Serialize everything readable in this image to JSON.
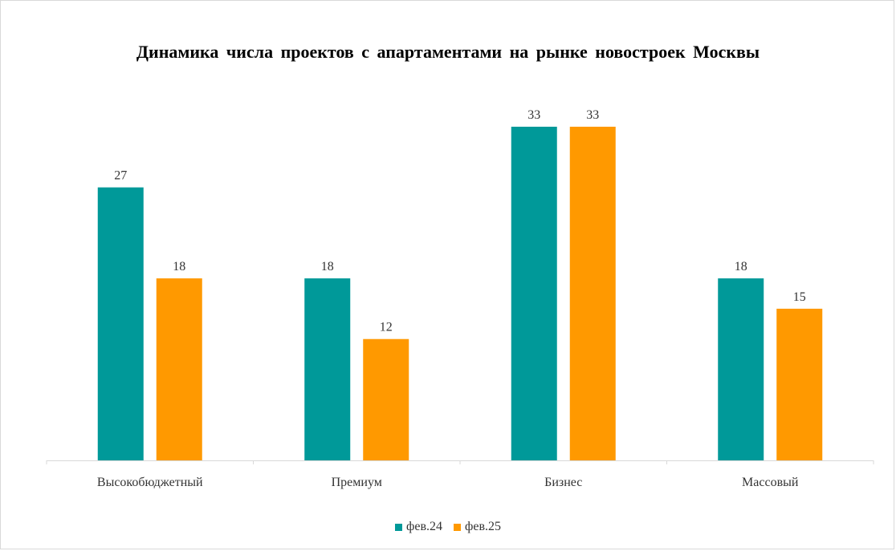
{
  "chart_data": {
    "type": "bar",
    "title": "Динамика числа проектов с апартаментами на рынке новостроек Москвы",
    "categories": [
      "Высокобюджетный",
      "Премиум",
      "Бизнес",
      "Массовый"
    ],
    "series": [
      {
        "name": "фев.24",
        "values": [
          27,
          18,
          33,
          18
        ],
        "color": "#009999"
      },
      {
        "name": "фев.25",
        "values": [
          18,
          12,
          33,
          15
        ],
        "color": "#ff9900"
      }
    ],
    "ylim": [
      0,
      33
    ],
    "grid": false,
    "legend_position": "bottom",
    "data_labels": true
  }
}
